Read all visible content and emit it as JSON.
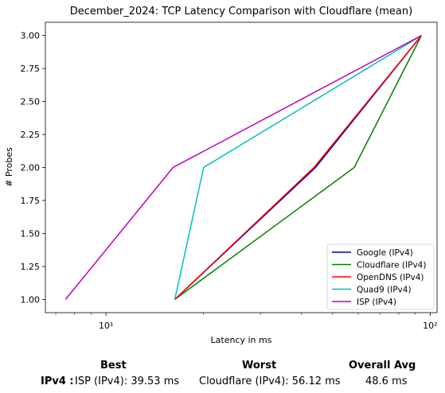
{
  "chart_data": {
    "type": "line",
    "title": "December_2024: TCP Latency Comparison with Cloudflare (mean)",
    "xlabel": "Latency in ms",
    "ylabel": "# Probes",
    "xscale": "log",
    "xlim": [
      6.5,
      105
    ],
    "ylim": [
      0.9,
      3.1
    ],
    "xticks": [
      {
        "value": 10,
        "label": "10¹"
      },
      {
        "value": 100,
        "label": "10²"
      }
    ],
    "yticks": [
      {
        "value": 1.0,
        "label": "1.00"
      },
      {
        "value": 1.25,
        "label": "1.25"
      },
      {
        "value": 1.5,
        "label": "1.50"
      },
      {
        "value": 1.75,
        "label": "1.75"
      },
      {
        "value": 2.0,
        "label": "2.00"
      },
      {
        "value": 2.25,
        "label": "2.25"
      },
      {
        "value": 2.5,
        "label": "2.50"
      },
      {
        "value": 2.75,
        "label": "2.75"
      },
      {
        "value": 3.0,
        "label": "3.00"
      }
    ],
    "grid": false,
    "legend": "lower-right",
    "series": [
      {
        "name": "Google (IPv4)",
        "color": "#0000bf",
        "x": [
          16.3,
          44.3,
          94.0
        ],
        "y": [
          1,
          2,
          3
        ]
      },
      {
        "name": "Cloudflare (IPv4)",
        "color": "#008000",
        "x": [
          16.3,
          58.3,
          94.0
        ],
        "y": [
          1,
          2,
          3
        ]
      },
      {
        "name": "OpenDNS (IPv4)",
        "color": "#ff0000",
        "x": [
          16.3,
          43.8,
          94.0
        ],
        "y": [
          1,
          2,
          3
        ]
      },
      {
        "name": "Quad9 (IPv4)",
        "color": "#00bfbf",
        "x": [
          16.3,
          20.0,
          94.0
        ],
        "y": [
          1,
          2,
          3
        ]
      },
      {
        "name": "ISP (IPv4)",
        "color": "#bf00bf",
        "x": [
          7.5,
          16.1,
          94.0
        ],
        "y": [
          1,
          2,
          3
        ]
      }
    ]
  },
  "summary": {
    "best_header": "Best",
    "worst_header": "Worst",
    "avg_header": "Overall Avg",
    "row_label": "IPv4 :",
    "best_value": "ISP (IPv4): 39.53 ms",
    "worst_value": "Cloudflare (IPv4): 56.12 ms",
    "avg_value": "48.6 ms"
  }
}
